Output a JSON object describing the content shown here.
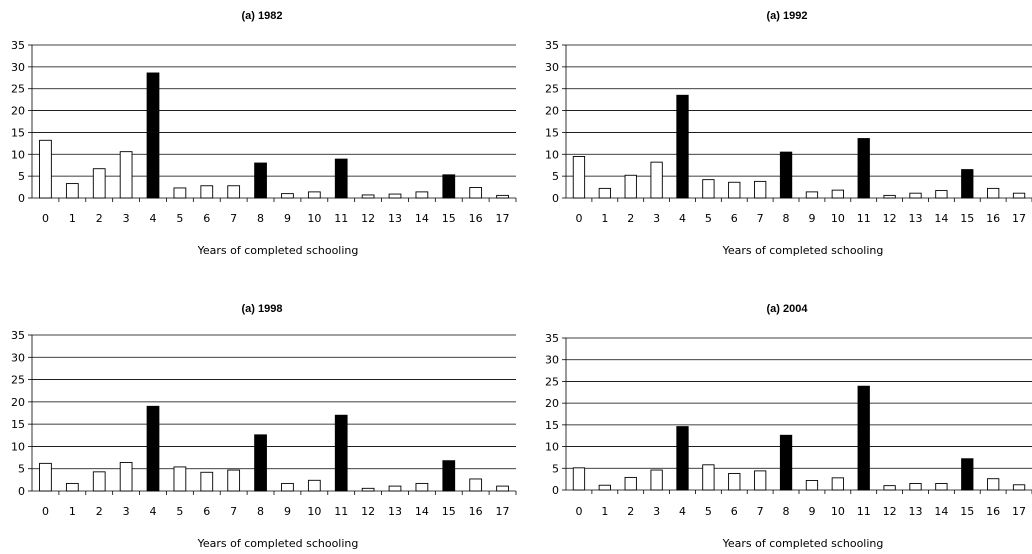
{
  "style": {
    "highlight_color": "#000000",
    "other_color": "#ffffff",
    "outline_color": "#000000"
  },
  "chart_data": [
    {
      "type": "bar",
      "title": "(a) 1982",
      "xlabel": "Years of completed schooling",
      "ylabel": "",
      "categories": [
        "0",
        "1",
        "2",
        "3",
        "4",
        "5",
        "6",
        "7",
        "8",
        "9",
        "10",
        "11",
        "12",
        "13",
        "14",
        "15",
        "16",
        "17"
      ],
      "values": [
        13.2,
        3.3,
        6.7,
        10.6,
        28.6,
        2.3,
        2.8,
        2.8,
        8.0,
        1.0,
        1.4,
        8.9,
        0.7,
        0.9,
        1.4,
        5.3,
        2.4,
        0.6
      ],
      "highlighted": [
        "4",
        "8",
        "11",
        "15"
      ],
      "ylim": [
        0,
        35
      ],
      "yticks": [
        0,
        5,
        10,
        15,
        20,
        25,
        30,
        35
      ],
      "grid": true
    },
    {
      "type": "bar",
      "title": "(a) 1992",
      "xlabel": "Years of completed schooling",
      "ylabel": "",
      "categories": [
        "0",
        "1",
        "2",
        "3",
        "4",
        "5",
        "6",
        "7",
        "8",
        "9",
        "10",
        "11",
        "12",
        "13",
        "14",
        "15",
        "16",
        "17"
      ],
      "values": [
        9.5,
        2.2,
        5.2,
        8.2,
        23.5,
        4.2,
        3.6,
        3.8,
        10.5,
        1.4,
        1.8,
        13.6,
        0.6,
        1.1,
        1.7,
        6.5,
        2.2,
        1.1
      ],
      "highlighted": [
        "4",
        "8",
        "11",
        "15"
      ],
      "ylim": [
        0,
        35
      ],
      "yticks": [
        0,
        5,
        10,
        15,
        20,
        25,
        30,
        35
      ],
      "grid": true
    },
    {
      "type": "bar",
      "title": "(a) 1998",
      "xlabel": "Years of completed schooling",
      "ylabel": "",
      "categories": [
        "0",
        "1",
        "2",
        "3",
        "4",
        "5",
        "6",
        "7",
        "8",
        "9",
        "10",
        "11",
        "12",
        "13",
        "14",
        "15",
        "16",
        "17"
      ],
      "values": [
        6.2,
        1.7,
        4.3,
        6.4,
        19.0,
        5.4,
        4.2,
        4.7,
        12.6,
        1.7,
        2.4,
        17.0,
        0.6,
        1.1,
        1.7,
        6.8,
        2.7,
        1.1
      ],
      "highlighted": [
        "4",
        "8",
        "11",
        "15"
      ],
      "ylim": [
        0,
        35
      ],
      "yticks": [
        0,
        5,
        10,
        15,
        20,
        25,
        30,
        35
      ],
      "grid": true
    },
    {
      "type": "bar",
      "title": "(a) 2004",
      "xlabel": "Years of completed schooling",
      "ylabel": "",
      "categories": [
        "0",
        "1",
        "2",
        "3",
        "4",
        "5",
        "6",
        "7",
        "8",
        "9",
        "10",
        "11",
        "12",
        "13",
        "14",
        "15",
        "16",
        "17"
      ],
      "values": [
        5.1,
        1.1,
        2.9,
        4.6,
        14.6,
        5.8,
        3.8,
        4.4,
        12.6,
        2.2,
        2.8,
        23.9,
        1.0,
        1.5,
        1.5,
        7.2,
        2.6,
        1.2
      ],
      "highlighted": [
        "4",
        "8",
        "11",
        "15"
      ],
      "ylim": [
        0,
        35
      ],
      "yticks": [
        0,
        5,
        10,
        15,
        20,
        25,
        30,
        35
      ],
      "grid": true
    }
  ]
}
